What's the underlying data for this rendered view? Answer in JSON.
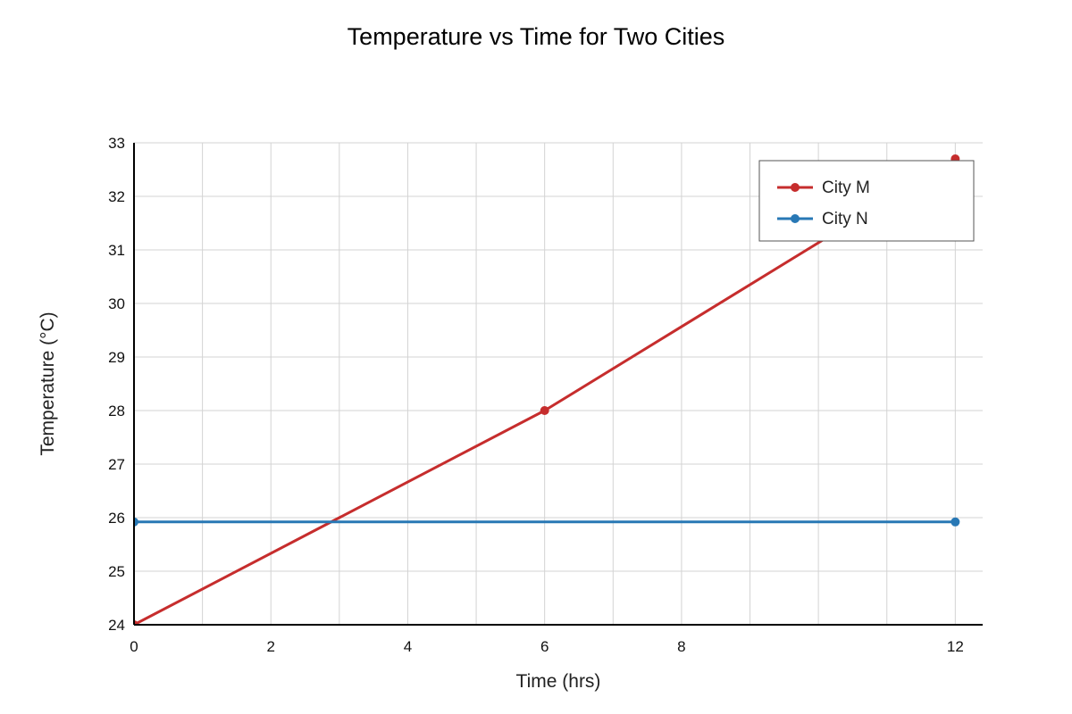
{
  "chart_data": {
    "type": "line",
    "title": "Temperature vs Time for Two Cities",
    "xlabel": "Time (hrs)",
    "ylabel": "Temperature (°C)",
    "xlim": [
      0,
      12.4
    ],
    "ylim": [
      24,
      33
    ],
    "x_ticks": [
      0,
      2,
      4,
      6,
      8,
      12
    ],
    "x_grid": [
      0,
      1,
      2,
      3,
      4,
      5,
      6,
      7,
      8,
      9,
      10,
      11,
      12
    ],
    "y_ticks": [
      24,
      25,
      26,
      27,
      28,
      29,
      30,
      31,
      32,
      33
    ],
    "grid": true,
    "legend_position": "top-right",
    "series": [
      {
        "name": "City M",
        "color": "#c62d2d",
        "x": [
          0,
          6,
          12
        ],
        "y": [
          24,
          28,
          32.7
        ]
      },
      {
        "name": "City N",
        "color": "#2878b5",
        "x": [
          0,
          12
        ],
        "y": [
          25.92,
          25.92
        ]
      }
    ]
  }
}
